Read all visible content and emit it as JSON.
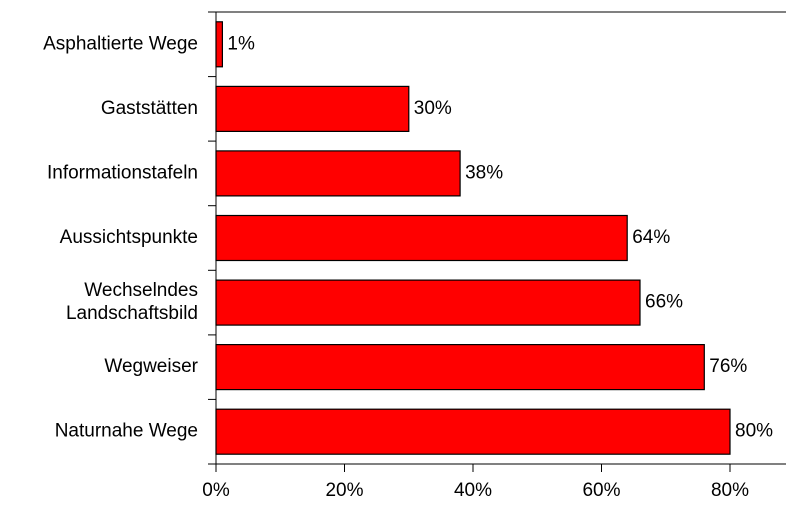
{
  "chart_data": {
    "type": "bar",
    "orientation": "horizontal",
    "categories": [
      [
        "Asphaltierte Wege"
      ],
      [
        "Gaststätten"
      ],
      [
        "Informationstafeln"
      ],
      [
        "Aussichtspunkte"
      ],
      [
        "Wechselndes",
        "Landschaftsbild"
      ],
      [
        "Wegweiser"
      ],
      [
        "Naturnahe Wege"
      ]
    ],
    "values": [
      1,
      30,
      38,
      64,
      66,
      76,
      80
    ],
    "data_labels": [
      "1%",
      "30%",
      "38%",
      "64%",
      "66%",
      "76%",
      "80%"
    ],
    "x_ticks": [
      "0%",
      "20%",
      "40%",
      "60%",
      "80%"
    ],
    "x_tick_values": [
      0,
      20,
      40,
      60,
      80
    ],
    "xlim": [
      0,
      88
    ],
    "bar_color": "#ff0000",
    "bar_edge_color": "#000000",
    "grid": false,
    "legend": false,
    "title": "",
    "xlabel": "",
    "ylabel": ""
  }
}
